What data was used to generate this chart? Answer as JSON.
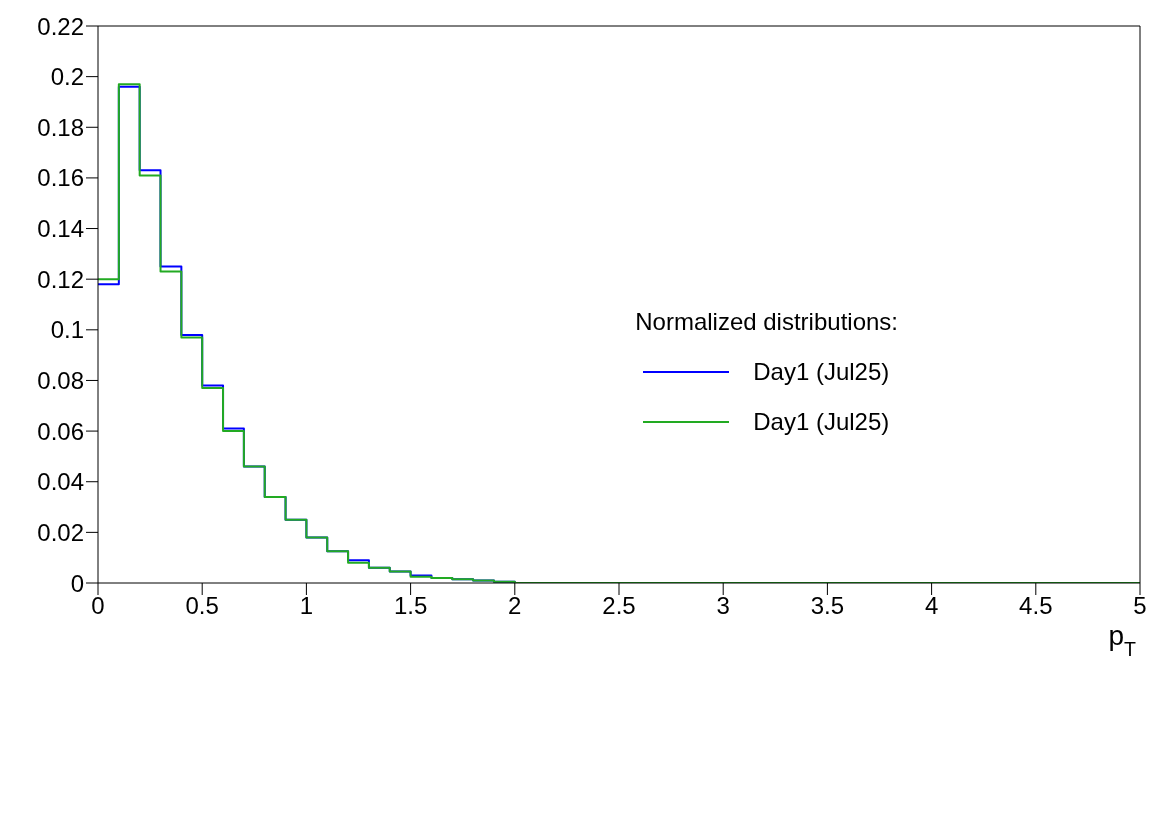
{
  "chart_data": {
    "type": "histogram",
    "xlabel": "p$_{T}$",
    "legend_title": "Normalized distributions:",
    "legend": "right",
    "bins": [
      0,
      0.1,
      0.2,
      0.3,
      0.4,
      0.5,
      0.6,
      0.7,
      0.8,
      0.9,
      1,
      1.1,
      1.2,
      1.3,
      1.4,
      1.5,
      1.6,
      1.7,
      1.8,
      1.9,
      2,
      2.1,
      2.2,
      2.3,
      2.4,
      2.5,
      2.6,
      2.7,
      2.8,
      2.9,
      3,
      3.1,
      3.2,
      3.3,
      3.4,
      3.5,
      3.6,
      3.7,
      3.8,
      3.9,
      4,
      4.1,
      4.2,
      4.3,
      4.4,
      4.5,
      4.6,
      4.7,
      4.8,
      4.9,
      5
    ],
    "series": [
      {
        "name": "Day1 (Jul25)",
        "color": "#0000ff",
        "values": [
          0.118,
          0.196,
          0.163,
          0.125,
          0.098,
          0.078,
          0.061,
          0.046,
          0.034,
          0.025,
          0.018,
          0.0125,
          0.009,
          0.006,
          0.0045,
          0.003,
          0.002,
          0.0015,
          0.001,
          0.0005,
          0,
          0,
          0,
          0,
          0,
          0,
          0,
          0,
          0,
          0,
          0,
          0,
          0,
          0,
          0,
          0,
          0,
          0,
          0,
          0,
          0,
          0,
          0,
          0,
          0,
          0,
          0,
          0,
          0,
          0
        ]
      },
      {
        "name": "Day1 (Jul25)",
        "color": "#22aa22",
        "values": [
          0.12,
          0.197,
          0.161,
          0.123,
          0.097,
          0.077,
          0.06,
          0.046,
          0.034,
          0.025,
          0.018,
          0.0125,
          0.008,
          0.006,
          0.0045,
          0.0025,
          0.002,
          0.0015,
          0.001,
          0.0005,
          0,
          0,
          0,
          0,
          0,
          0,
          0,
          0,
          0,
          0,
          0,
          0,
          0,
          0,
          0,
          0,
          0,
          0,
          0,
          0,
          0,
          0,
          0,
          0,
          0,
          0,
          0,
          0,
          0,
          0
        ]
      }
    ],
    "xlim": [
      0,
      5
    ],
    "xticks": [
      0,
      0.5,
      1,
      1.5,
      2,
      2.5,
      3,
      3.5,
      4,
      4.5,
      5
    ],
    "ylim": [
      0,
      0.22
    ],
    "yticks": [
      0,
      0.02,
      0.04,
      0.06,
      0.08,
      0.1,
      0.12,
      0.14,
      0.16,
      0.18,
      0.2,
      0.22
    ],
    "grid": false
  }
}
